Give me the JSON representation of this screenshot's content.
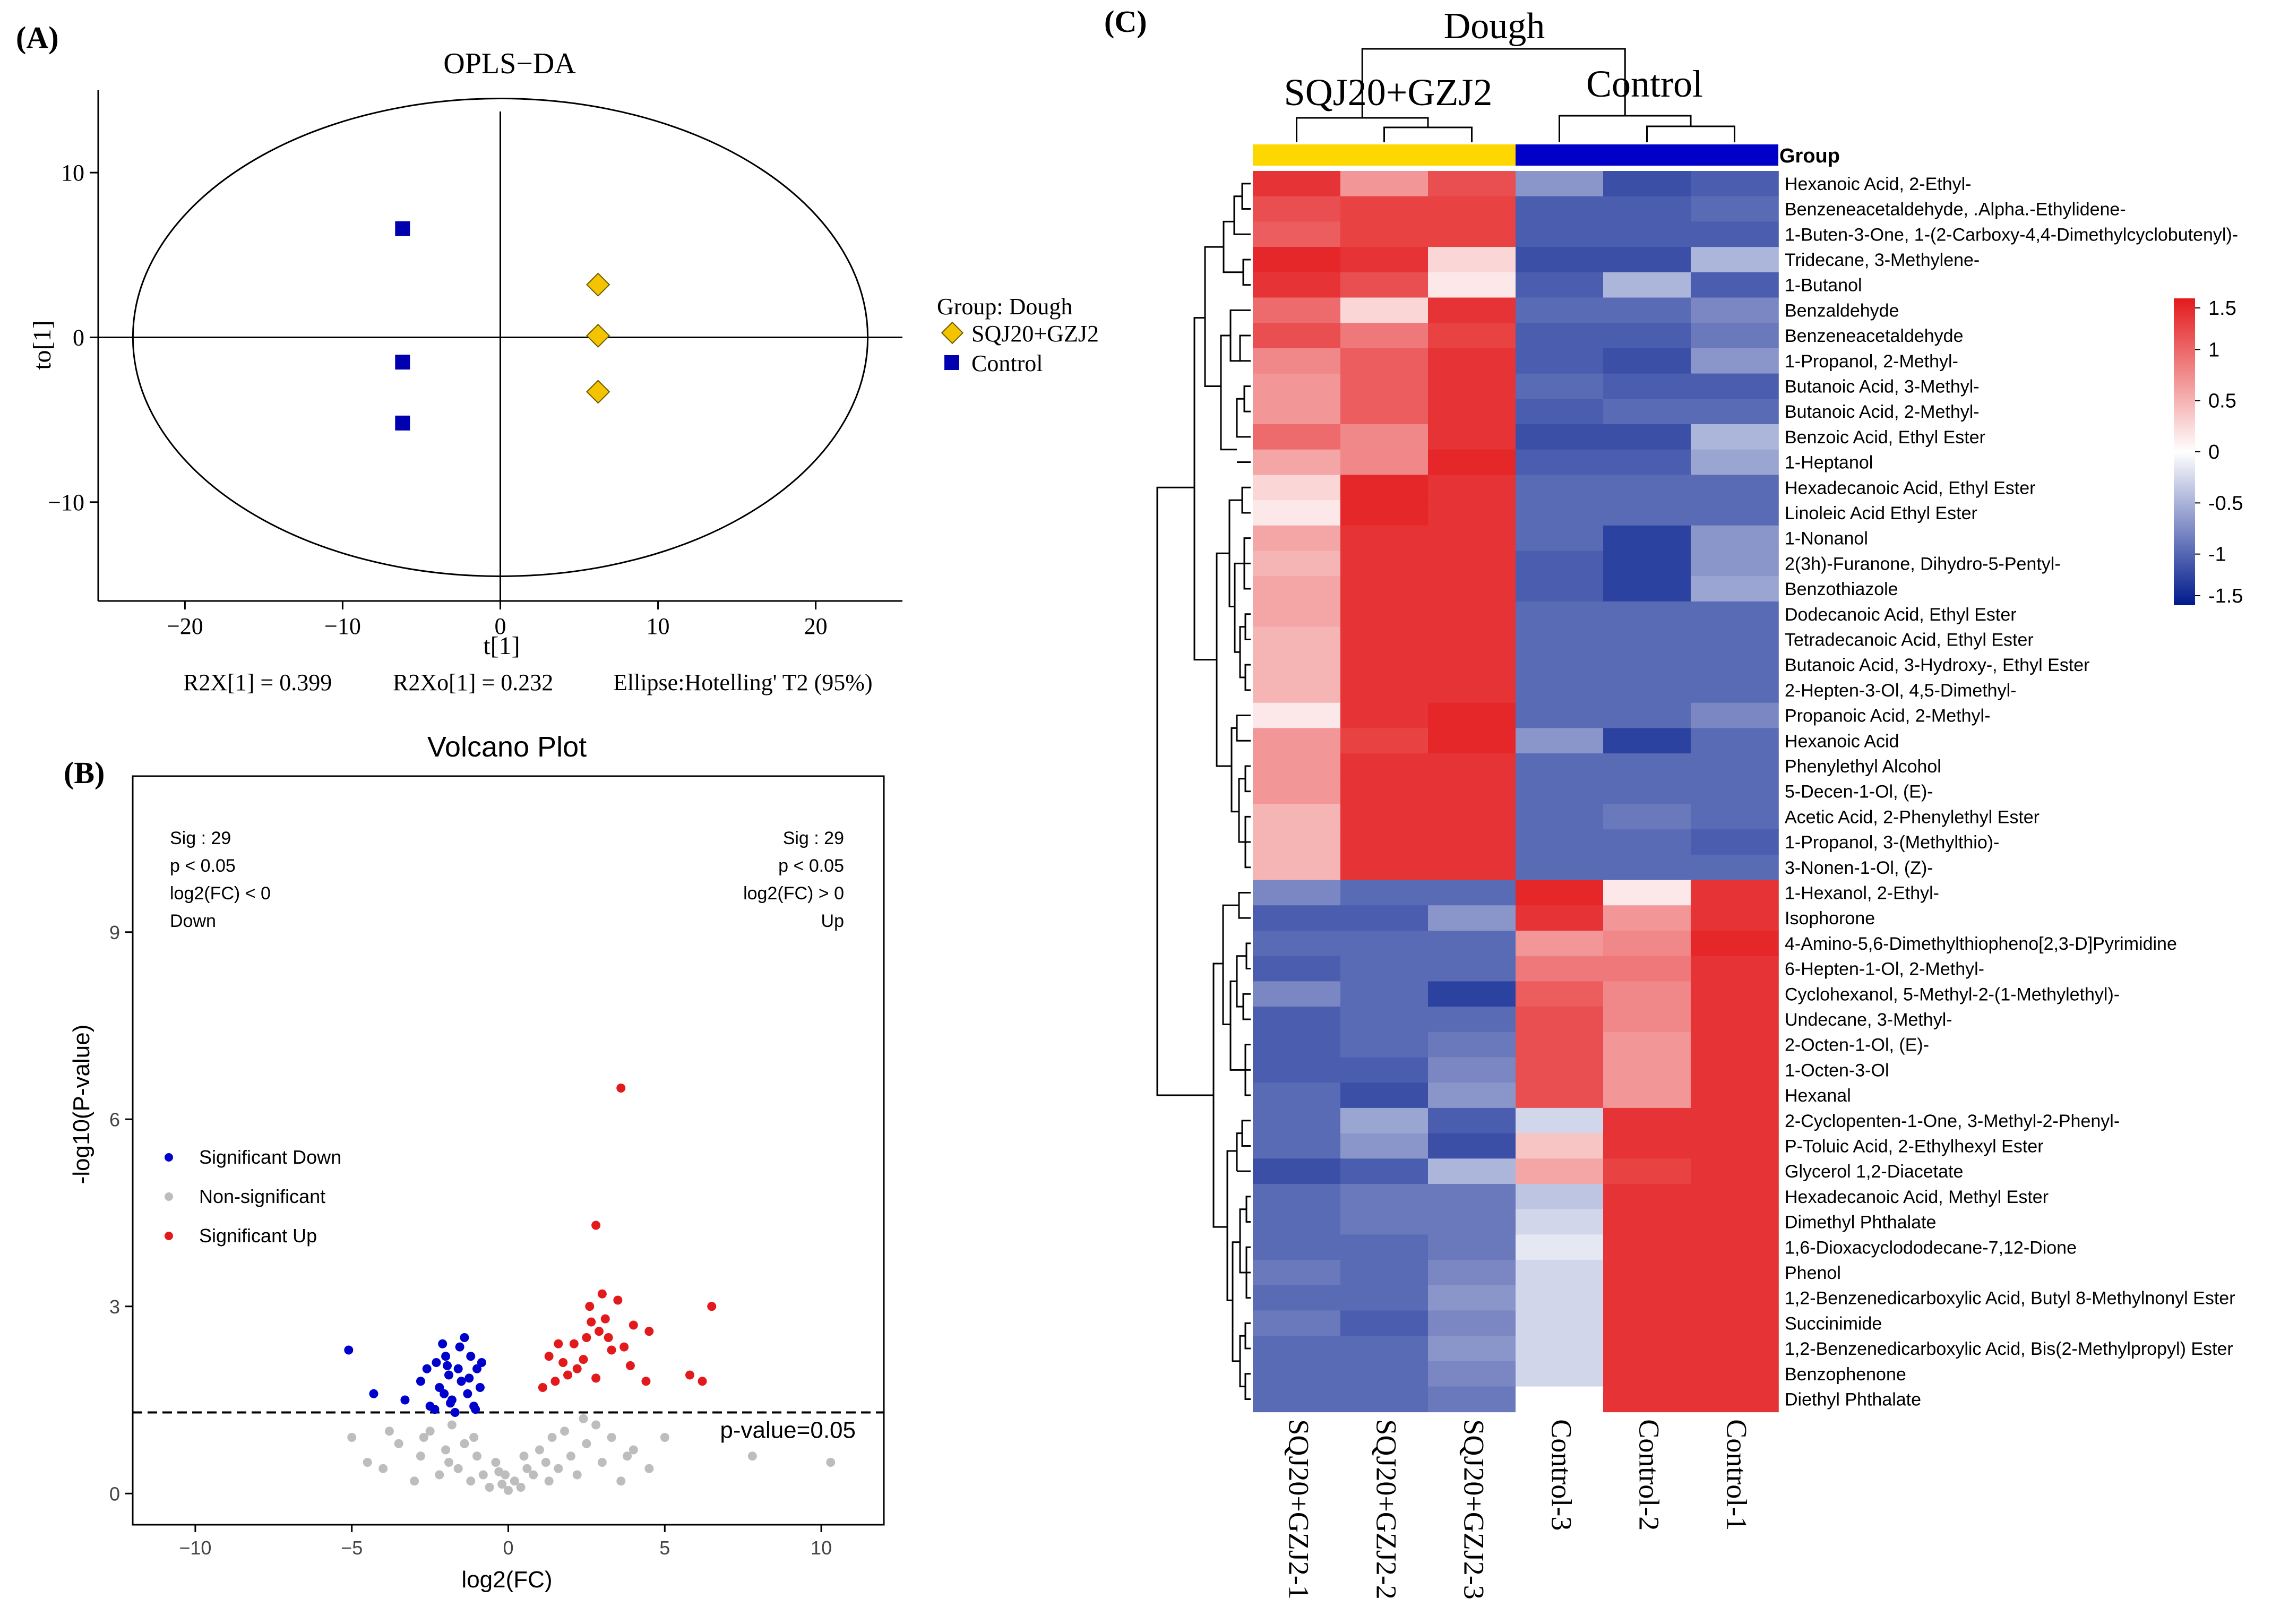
{
  "panels": {
    "A": "(A)",
    "B": "(B)",
    "C": "(C)"
  },
  "chart_data": [
    {
      "type": "scatter",
      "panel": "A",
      "title": "OPLS−DA",
      "xlabel": "t[1]",
      "ylabel": "to[1]",
      "xlim": [
        -25.5,
        25.5
      ],
      "ylim": [
        -16,
        15
      ],
      "xticks": [
        "−20",
        "−10",
        "0",
        "10",
        "20"
      ],
      "yticks": [
        "10",
        "0",
        "−10"
      ],
      "xtick_values": [
        -20,
        -10,
        0,
        10,
        20
      ],
      "ytick_values": [
        10,
        0,
        -10
      ],
      "legend": {
        "title": "Group: Dough",
        "placement": "right",
        "entries": [
          "SQJ20+GZJ2",
          "Control"
        ]
      },
      "ellipse": {
        "rx": 23.3,
        "ry": 14.5
      },
      "series": [
        {
          "name": "SQJ20+GZJ2",
          "marker": "diamond",
          "color": "#f5c400",
          "x": [
            6.2,
            6.2,
            6.2
          ],
          "y": [
            3.2,
            0.1,
            -3.3
          ]
        },
        {
          "name": "Control",
          "marker": "square",
          "color": "#0000b0",
          "x": [
            -6.2,
            -6.2,
            -6.2
          ],
          "y": [
            6.6,
            -1.5,
            -5.2
          ]
        }
      ],
      "footer": {
        "r2x": "R2X[1]  =  0.399",
        "r2xo": "R2Xo[1]  =  0.232",
        "ellipse": "Ellipse:Hotelling' T2 (95%)"
      }
    },
    {
      "type": "scatter",
      "panel": "B",
      "title": "Volcano Plot",
      "xlabel": "log2(FC)",
      "ylabel": "-log10(P-value)",
      "xlim": [
        -12,
        12
      ],
      "ylim": [
        -0.5,
        11.5
      ],
      "xticks": [
        "−10",
        "−5",
        "0",
        "5",
        "10"
      ],
      "yticks": [
        "0",
        "3",
        "6",
        "9"
      ],
      "xtick_values": [
        -10,
        -5,
        0,
        5,
        10
      ],
      "ytick_values": [
        0,
        3,
        6,
        9
      ],
      "threshold": {
        "y": 1.3,
        "label": "p-value=0.05"
      },
      "annot_left": [
        "Sig : 29",
        "p < 0.05",
        "log2(FC) < 0",
        "Down"
      ],
      "annot_right": [
        "Sig : 29",
        "p < 0.05",
        "log2(FC) > 0",
        "Up"
      ],
      "legend": {
        "placement": "left",
        "entries": [
          {
            "name": "Significant Down",
            "color": "#0000cc"
          },
          {
            "name": "Non-significant",
            "color": "#bdbdbd"
          },
          {
            "name": "Significant Up",
            "color": "#e31a1c"
          }
        ]
      },
      "series": [
        {
          "name": "Significant Down",
          "color": "#0000cc",
          "points": [
            [
              -5.1,
              2.3
            ],
            [
              -4.3,
              1.6
            ],
            [
              -3.3,
              1.5
            ],
            [
              -2.8,
              1.8
            ],
            [
              -2.6,
              2.0
            ],
            [
              -2.5,
              1.4
            ],
            [
              -2.3,
              2.1
            ],
            [
              -2.2,
              1.7
            ],
            [
              -2.1,
              2.4
            ],
            [
              -2.0,
              2.2
            ],
            [
              -1.9,
              1.9
            ],
            [
              -1.8,
              1.5
            ],
            [
              -1.7,
              1.3
            ],
            [
              -1.6,
              2.0
            ],
            [
              -1.5,
              1.8
            ],
            [
              -1.4,
              2.5
            ],
            [
              -1.3,
              1.6
            ],
            [
              -1.2,
              2.2
            ],
            [
              -1.1,
              1.4
            ],
            [
              -1.0,
              2.0
            ],
            [
              -0.9,
              1.7
            ],
            [
              -1.05,
              1.35
            ],
            [
              -1.85,
              1.45
            ],
            [
              -2.05,
              1.6
            ],
            [
              -2.35,
              1.35
            ],
            [
              -1.55,
              2.35
            ],
            [
              -1.25,
              1.85
            ],
            [
              -0.85,
              2.1
            ],
            [
              -1.95,
              2.05
            ]
          ]
        },
        {
          "name": "Non-significant",
          "color": "#bdbdbd",
          "points": [
            [
              -5.0,
              0.9
            ],
            [
              -4.5,
              0.5
            ],
            [
              -4.0,
              0.4
            ],
            [
              -3.5,
              0.8
            ],
            [
              -3.0,
              0.2
            ],
            [
              -2.8,
              0.6
            ],
            [
              -2.5,
              1.0
            ],
            [
              -2.2,
              0.3
            ],
            [
              -2.0,
              0.7
            ],
            [
              -1.8,
              1.1
            ],
            [
              -1.6,
              0.4
            ],
            [
              -1.4,
              0.8
            ],
            [
              -1.2,
              0.2
            ],
            [
              -1.0,
              0.6
            ],
            [
              -0.8,
              0.3
            ],
            [
              -0.6,
              0.1
            ],
            [
              -0.4,
              0.5
            ],
            [
              -0.2,
              0.15
            ],
            [
              0.0,
              0.05
            ],
            [
              0.2,
              0.2
            ],
            [
              0.4,
              0.1
            ],
            [
              0.6,
              0.4
            ],
            [
              0.8,
              0.3
            ],
            [
              1.0,
              0.7
            ],
            [
              1.2,
              0.5
            ],
            [
              1.4,
              0.9
            ],
            [
              1.6,
              0.4
            ],
            [
              1.8,
              1.0
            ],
            [
              2.0,
              0.6
            ],
            [
              2.2,
              0.3
            ],
            [
              2.5,
              0.8
            ],
            [
              2.8,
              1.1
            ],
            [
              3.0,
              0.5
            ],
            [
              3.3,
              0.9
            ],
            [
              3.6,
              0.2
            ],
            [
              4.0,
              0.7
            ],
            [
              4.5,
              0.4
            ],
            [
              5.0,
              0.9
            ],
            [
              7.8,
              0.6
            ],
            [
              10.3,
              0.5
            ],
            [
              -3.8,
              1.0
            ],
            [
              -2.7,
              0.9
            ],
            [
              -1.9,
              0.5
            ],
            [
              -1.1,
              0.9
            ],
            [
              -0.3,
              0.35
            ],
            [
              0.5,
              0.6
            ],
            [
              1.3,
              0.2
            ],
            [
              2.4,
              1.2
            ],
            [
              3.8,
              0.6
            ],
            [
              -0.1,
              0.3
            ]
          ]
        },
        {
          "name": "Significant Up",
          "color": "#e31a1c",
          "points": [
            [
              3.6,
              6.5
            ],
            [
              2.8,
              4.3
            ],
            [
              3.0,
              3.2
            ],
            [
              3.5,
              3.1
            ],
            [
              2.6,
              3.0
            ],
            [
              4.0,
              2.7
            ],
            [
              4.5,
              2.6
            ],
            [
              6.5,
              3.0
            ],
            [
              3.1,
              2.8
            ],
            [
              2.5,
              2.5
            ],
            [
              2.1,
              2.4
            ],
            [
              1.6,
              2.4
            ],
            [
              1.3,
              2.2
            ],
            [
              2.2,
              2.0
            ],
            [
              3.3,
              2.3
            ],
            [
              2.9,
              2.6
            ],
            [
              3.2,
              2.5
            ],
            [
              5.8,
              1.9
            ],
            [
              6.2,
              1.8
            ],
            [
              4.4,
              1.8
            ],
            [
              1.9,
              1.9
            ],
            [
              1.1,
              1.7
            ],
            [
              1.5,
              1.8
            ],
            [
              2.8,
              1.85
            ],
            [
              3.7,
              2.35
            ],
            [
              2.4,
              2.15
            ],
            [
              1.75,
              2.1
            ],
            [
              3.9,
              2.05
            ],
            [
              2.65,
              2.75
            ]
          ]
        }
      ]
    },
    {
      "type": "heatmap",
      "panel": "C",
      "title": "Dough",
      "group_label": "Group",
      "groups": [
        {
          "name": "SQJ20+GZJ2",
          "color": "#ffd700",
          "columns": [
            0,
            1,
            2
          ]
        },
        {
          "name": "Control",
          "color": "#0000c8",
          "columns": [
            3,
            4,
            5
          ]
        }
      ],
      "columns": [
        "SQJ20+GZJ2-1",
        "SQJ20+GZJ2-2",
        "SQJ20+GZJ2-3",
        "Control-3",
        "Control-2",
        "Control-1"
      ],
      "rows": [
        "Hexanoic Acid, 2-Ethyl-",
        "Benzeneacetaldehyde, .Alpha.-Ethylidene-",
        "1-Buten-3-One, 1-(2-Carboxy-4,4-Dimethylcyclobutenyl)-",
        "Tridecane, 3-Methylene-",
        "1-Butanol",
        "Benzaldehyde",
        "Benzeneacetaldehyde",
        "1-Propanol, 2-Methyl-",
        "Butanoic Acid, 3-Methyl-",
        "Butanoic Acid, 2-Methyl-",
        "Benzoic Acid, Ethyl Ester",
        "1-Heptanol",
        "Hexadecanoic Acid, Ethyl Ester",
        "Linoleic Acid Ethyl Ester",
        "1-Nonanol",
        "2(3h)-Furanone, Dihydro-5-Pentyl-",
        "Benzothiazole",
        "Dodecanoic Acid, Ethyl Ester",
        "Tetradecanoic Acid, Ethyl Ester",
        "Butanoic Acid, 3-Hydroxy-, Ethyl Ester",
        "2-Hepten-3-Ol, 4,5-Dimethyl-",
        "Propanoic Acid, 2-Methyl-",
        "Hexanoic Acid",
        "Phenylethyl Alcohol",
        "5-Decen-1-Ol, (E)-",
        "Acetic Acid, 2-Phenylethyl Ester",
        "1-Propanol, 3-(Methylthio)-",
        "3-Nonen-1-Ol, (Z)-",
        "1-Hexanol, 2-Ethyl-",
        "Isophorone",
        "4-Amino-5,6-Dimethylthiopheno[2,3-D]Pyrimidine",
        "6-Hepten-1-Ol, 2-Methyl-",
        "Cyclohexanol, 5-Methyl-2-(1-Methylethyl)-",
        "Undecane, 3-Methyl-",
        "2-Octen-1-Ol, (E)-",
        "1-Octen-3-Ol",
        "Hexanal",
        "2-Cyclopenten-1-One, 3-Methyl-2-Phenyl-",
        "P-Toluic Acid, 2-Ethylhexyl Ester",
        "Glycerol 1,2-Diacetate",
        "Hexadecanoic Acid, Methyl Ester",
        "Dimethyl Phthalate",
        "1,6-Dioxacyclododecane-7,12-Dione",
        "Phenol",
        "1,2-Benzenedicarboxylic Acid, Butyl 8-Methylnonyl Ester",
        "Succinimide",
        "1,2-Benzenedicarboxylic Acid, Bis(2-Methylpropyl) Ester",
        "Benzophenone",
        "Diethyl Phthalate"
      ],
      "values": [
        [
          1.3,
          0.6,
          1.1,
          -0.6,
          -1.1,
          -1.0
        ],
        [
          1.1,
          1.2,
          1.2,
          -1.0,
          -1.0,
          -0.9
        ],
        [
          1.0,
          1.2,
          1.2,
          -1.0,
          -1.0,
          -1.0
        ],
        [
          1.4,
          1.3,
          0.2,
          -1.1,
          -1.1,
          -0.4
        ],
        [
          1.3,
          1.1,
          0.1,
          -1.0,
          -0.4,
          -1.0
        ],
        [
          0.9,
          0.2,
          1.3,
          -0.9,
          -0.9,
          -0.7
        ],
        [
          1.1,
          0.8,
          1.2,
          -1.0,
          -1.0,
          -0.8
        ],
        [
          0.7,
          1.0,
          1.3,
          -1.0,
          -1.1,
          -0.6
        ],
        [
          0.6,
          1.0,
          1.3,
          -0.9,
          -1.0,
          -1.0
        ],
        [
          0.6,
          1.0,
          1.3,
          -1.0,
          -0.9,
          -0.9
        ],
        [
          0.9,
          0.7,
          1.3,
          -1.1,
          -1.1,
          -0.4
        ],
        [
          0.5,
          0.7,
          1.4,
          -1.0,
          -1.0,
          -0.5
        ],
        [
          0.2,
          1.4,
          1.3,
          -0.9,
          -0.9,
          -0.9
        ],
        [
          0.1,
          1.4,
          1.3,
          -0.9,
          -0.9,
          -0.9
        ],
        [
          0.5,
          1.3,
          1.3,
          -0.9,
          -1.2,
          -0.6
        ],
        [
          0.4,
          1.3,
          1.3,
          -1.0,
          -1.2,
          -0.6
        ],
        [
          0.5,
          1.3,
          1.3,
          -1.0,
          -1.2,
          -0.5
        ],
        [
          0.5,
          1.3,
          1.3,
          -0.9,
          -0.9,
          -0.9
        ],
        [
          0.4,
          1.3,
          1.3,
          -0.9,
          -0.9,
          -0.9
        ],
        [
          0.4,
          1.3,
          1.3,
          -0.9,
          -0.9,
          -0.9
        ],
        [
          0.4,
          1.3,
          1.3,
          -0.9,
          -0.9,
          -0.9
        ],
        [
          0.1,
          1.3,
          1.4,
          -0.9,
          -0.9,
          -0.7
        ],
        [
          0.6,
          1.2,
          1.4,
          -0.6,
          -1.2,
          -0.9
        ],
        [
          0.6,
          1.3,
          1.3,
          -0.9,
          -0.9,
          -0.9
        ],
        [
          0.6,
          1.3,
          1.3,
          -0.9,
          -0.9,
          -0.9
        ],
        [
          0.4,
          1.3,
          1.3,
          -0.9,
          -0.8,
          -0.9
        ],
        [
          0.4,
          1.3,
          1.3,
          -0.9,
          -0.9,
          -1.0
        ],
        [
          0.4,
          1.3,
          1.3,
          -0.9,
          -0.9,
          -0.9
        ],
        [
          -0.7,
          -0.9,
          -0.9,
          1.4,
          0.1,
          1.3
        ],
        [
          -1.0,
          -1.0,
          -0.6,
          1.3,
          0.6,
          1.3
        ],
        [
          -0.9,
          -0.9,
          -0.9,
          0.6,
          0.7,
          1.4
        ],
        [
          -1.0,
          -0.9,
          -0.9,
          0.8,
          0.8,
          1.3
        ],
        [
          -0.7,
          -0.9,
          -1.2,
          1.0,
          0.7,
          1.3
        ],
        [
          -1.0,
          -0.9,
          -0.9,
          1.1,
          0.7,
          1.3
        ],
        [
          -1.0,
          -0.9,
          -0.8,
          1.1,
          0.6,
          1.3
        ],
        [
          -1.0,
          -1.0,
          -0.7,
          1.1,
          0.6,
          1.3
        ],
        [
          -0.9,
          -1.1,
          -0.6,
          1.1,
          0.6,
          1.3
        ],
        [
          -0.9,
          -0.5,
          -1.0,
          -0.2,
          1.3,
          1.3
        ],
        [
          -0.9,
          -0.6,
          -1.1,
          0.3,
          1.3,
          1.3
        ],
        [
          -1.1,
          -1.0,
          -0.4,
          0.5,
          1.2,
          1.3
        ],
        [
          -0.9,
          -0.8,
          -0.8,
          -0.3,
          1.3,
          1.3
        ],
        [
          -0.9,
          -0.8,
          -0.8,
          -0.2,
          1.3,
          1.3
        ],
        [
          -0.9,
          -0.9,
          -0.8,
          -0.1,
          1.3,
          1.3
        ],
        [
          -0.8,
          -0.9,
          -0.7,
          -0.2,
          1.3,
          1.3
        ],
        [
          -0.9,
          -0.9,
          -0.6,
          -0.2,
          1.3,
          1.3
        ],
        [
          -0.8,
          -1.0,
          -0.7,
          -0.2,
          1.3,
          1.3
        ],
        [
          -0.9,
          -0.9,
          -0.6,
          -0.2,
          1.3,
          1.3
        ],
        [
          -0.9,
          -0.9,
          -0.7,
          -0.2,
          1.3,
          1.3
        ],
        [
          -0.9,
          -0.9,
          -0.8,
          0.0,
          1.3,
          1.3
        ]
      ],
      "color_scale": {
        "min": -1.5,
        "max": 1.5,
        "ticks": [
          "1.5",
          "1",
          "0.5",
          "0",
          "-0.5",
          "-1",
          "-1.5"
        ],
        "tick_values": [
          1.5,
          1,
          0.5,
          0,
          -0.5,
          -1,
          -1.5
        ],
        "low": "#001a8c",
        "mid": "#ffffff",
        "high": "#e31a1c"
      }
    }
  ]
}
